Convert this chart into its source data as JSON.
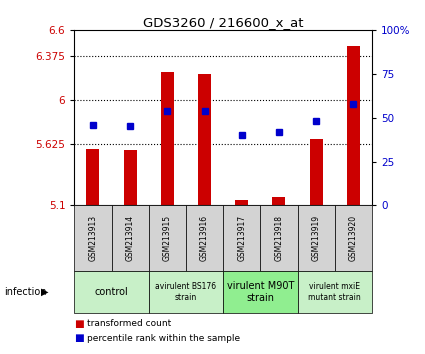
{
  "title": "GDS3260 / 216600_x_at",
  "samples": [
    "GSM213913",
    "GSM213914",
    "GSM213915",
    "GSM213916",
    "GSM213917",
    "GSM213918",
    "GSM213919",
    "GSM213920"
  ],
  "red_values": [
    5.58,
    5.57,
    6.24,
    6.22,
    5.145,
    5.175,
    5.67,
    6.46
  ],
  "blue_values": [
    46,
    45,
    54,
    54,
    40,
    42,
    48,
    58
  ],
  "ylim_left": [
    5.1,
    6.6
  ],
  "ylim_right": [
    0,
    100
  ],
  "yticks_left": [
    5.1,
    5.625,
    6.0,
    6.375,
    6.6
  ],
  "ytick_labels_left": [
    "5.1",
    "5.625",
    "6",
    "6.375",
    "6.6"
  ],
  "yticks_right": [
    0,
    25,
    50,
    75,
    100
  ],
  "ytick_labels_right": [
    "0",
    "25",
    "50",
    "75",
    "100%"
  ],
  "groups": [
    {
      "label": "control",
      "span": [
        0,
        2
      ],
      "color": "#c8f0c8"
    },
    {
      "label": "avirulent BS176\nstrain",
      "span": [
        2,
        4
      ],
      "color": "#c8f0c8"
    },
    {
      "label": "virulent M90T\nstrain",
      "span": [
        4,
        6
      ],
      "color": "#90ee90"
    },
    {
      "label": "virulent mxiE\nmutant strain",
      "span": [
        6,
        8
      ],
      "color": "#c8f0c8"
    }
  ],
  "bar_color": "#cc0000",
  "dot_color": "#0000cc",
  "bar_width": 0.35,
  "dotted_yticks": [
    5.625,
    6.0,
    6.375
  ],
  "tick_label_color_left": "#cc0000",
  "tick_label_color_right": "#0000cc",
  "legend_red": "transformed count",
  "legend_blue": "percentile rank within the sample",
  "infection_label": "infection"
}
